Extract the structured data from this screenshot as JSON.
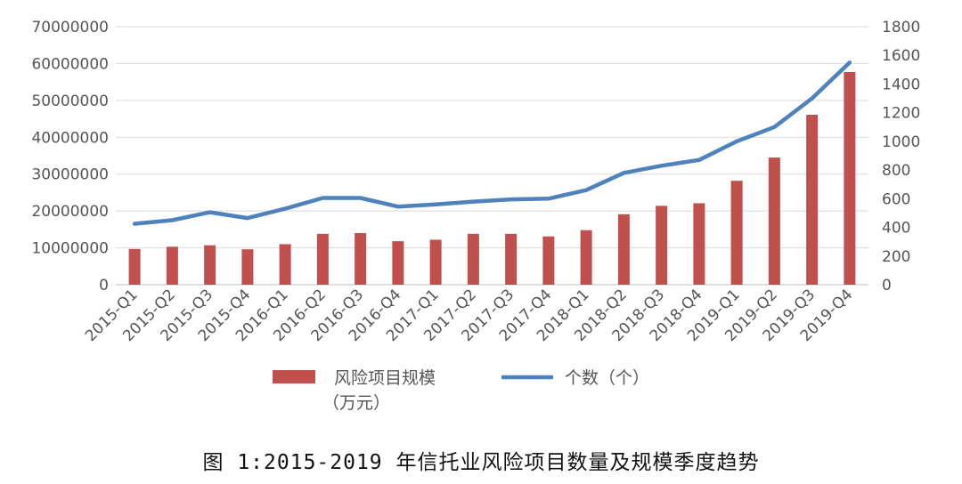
{
  "chart_data": {
    "type": "bar+line",
    "categories": [
      "2015-Q1",
      "2015-Q2",
      "2015-Q3",
      "2015-Q4",
      "2016-Q1",
      "2016-Q2",
      "2016-Q3",
      "2016-Q4",
      "2017-Q1",
      "2017-Q2",
      "2017-Q3",
      "2017-Q4",
      "2018-Q1",
      "2018-Q2",
      "2018-Q3",
      "2018-Q4",
      "2019-Q1",
      "2019-Q2",
      "2019-Q3",
      "2019-Q4"
    ],
    "series": [
      {
        "name": "风险项目规模（万元）",
        "type": "bar",
        "axis": "left",
        "color": "#c0504d",
        "values": [
          9700000,
          10300000,
          10700000,
          9600000,
          11000000,
          13800000,
          14000000,
          11800000,
          12200000,
          13800000,
          13800000,
          13100000,
          14800000,
          19100000,
          21400000,
          22100000,
          28200000,
          34500000,
          46100000,
          57700000
        ]
      },
      {
        "name": "个数（个）",
        "type": "line",
        "axis": "right",
        "color": "#4f81bd",
        "values": [
          425,
          450,
          505,
          465,
          530,
          605,
          605,
          545,
          560,
          580,
          595,
          600,
          660,
          780,
          830,
          870,
          1000,
          1100,
          1300,
          1550
        ]
      }
    ],
    "y_left": {
      "min": 0,
      "max": 70000000,
      "ticks": [
        "0",
        "10000000",
        "20000000",
        "30000000",
        "40000000",
        "50000000",
        "60000000",
        "70000000"
      ]
    },
    "y_right": {
      "min": 0,
      "max": 1800,
      "ticks": [
        "0",
        "200",
        "400",
        "600",
        "800",
        "1000",
        "1200",
        "1400",
        "1600",
        "1800"
      ]
    },
    "grid": true,
    "legend": {
      "placement": "bottom",
      "bar_label_line1": "风险项目规模",
      "bar_label_line2": "（万元）",
      "line_label": "个数（个）"
    },
    "caption": "图 1:2015-2019 年信托业风险项目数量及规模季度趋势"
  }
}
